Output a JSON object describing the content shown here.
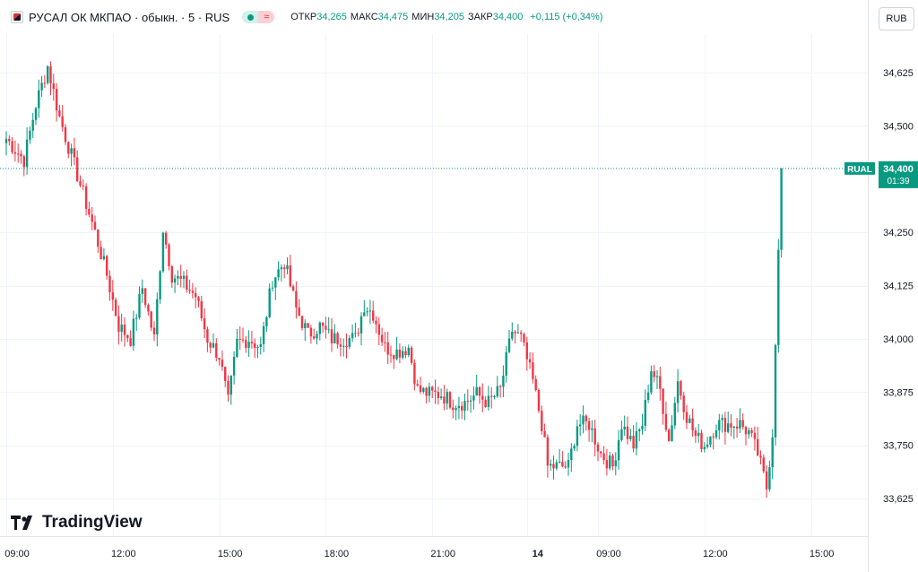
{
  "header": {
    "symbol_title": "РУСАЛ ОК МКПАО · обыкн. · 5 · RUS",
    "ohlc": [
      {
        "key": "ОТКР",
        "value": "34,265"
      },
      {
        "key": "МАКС",
        "value": "34,475"
      },
      {
        "key": "МИН",
        "value": "34,205"
      },
      {
        "key": "ЗАКР",
        "value": "34,400"
      }
    ],
    "change": "+0,115 (+0,34%)",
    "currency_button": "RUB"
  },
  "branding": {
    "logo_text": "TradingView"
  },
  "colors": {
    "up": "#089981",
    "down": "#f23645",
    "grid": "#f0f3fa",
    "axis_text": "#131722"
  },
  "chart_data": {
    "type": "candlestick",
    "symbol_label": "RUAL",
    "last_price": "34,400",
    "countdown": "01:39",
    "y_ticks": [
      "34,625",
      "34,500",
      "34,250",
      "34,125",
      "34,000",
      "33,875",
      "33,750",
      "33,625"
    ],
    "y_tick_values": [
      34.625,
      34.5,
      34.25,
      34.125,
      34.0,
      33.875,
      33.75,
      33.625
    ],
    "ylim": [
      33.625,
      34.625
    ],
    "x_ticks": [
      "09:00",
      "12:00",
      "15:00",
      "18:00",
      "21:00",
      "14",
      "09:00",
      "12:00",
      "15:00"
    ],
    "x_tick_index": [
      0,
      36,
      72,
      108,
      144,
      176,
      200,
      236,
      272
    ],
    "anchors": [
      [
        0,
        34.47
      ],
      [
        6,
        34.42
      ],
      [
        10,
        34.55
      ],
      [
        14,
        34.64
      ],
      [
        18,
        34.52
      ],
      [
        22,
        34.43
      ],
      [
        26,
        34.34
      ],
      [
        30,
        34.25
      ],
      [
        34,
        34.15
      ],
      [
        38,
        34.03
      ],
      [
        42,
        34.0
      ],
      [
        46,
        34.12
      ],
      [
        50,
        34.0
      ],
      [
        53,
        34.26
      ],
      [
        56,
        34.15
      ],
      [
        60,
        34.13
      ],
      [
        64,
        34.1
      ],
      [
        68,
        34.0
      ],
      [
        72,
        33.96
      ],
      [
        75,
        33.85
      ],
      [
        78,
        33.99
      ],
      [
        82,
        34.0
      ],
      [
        86,
        33.98
      ],
      [
        90,
        34.14
      ],
      [
        94,
        34.18
      ],
      [
        98,
        34.07
      ],
      [
        102,
        34.01
      ],
      [
        106,
        34.03
      ],
      [
        110,
        34.0
      ],
      [
        114,
        34.0
      ],
      [
        118,
        34.0
      ],
      [
        121,
        34.08
      ],
      [
        124,
        34.06
      ],
      [
        128,
        33.98
      ],
      [
        132,
        33.97
      ],
      [
        136,
        33.98
      ],
      [
        139,
        33.88
      ],
      [
        143,
        33.87
      ],
      [
        147,
        33.87
      ],
      [
        151,
        33.85
      ],
      [
        155,
        33.85
      ],
      [
        159,
        33.87
      ],
      [
        163,
        33.85
      ],
      [
        167,
        33.88
      ],
      [
        171,
        34.02
      ],
      [
        174,
        34.0
      ],
      [
        178,
        33.9
      ],
      [
        181,
        33.8
      ],
      [
        183,
        33.7
      ],
      [
        186,
        33.7
      ],
      [
        190,
        33.7
      ],
      [
        193,
        33.8
      ],
      [
        197,
        33.8
      ],
      [
        201,
        33.73
      ],
      [
        205,
        33.7
      ],
      [
        208,
        33.8
      ],
      [
        212,
        33.75
      ],
      [
        215,
        33.8
      ],
      [
        218,
        33.93
      ],
      [
        221,
        33.88
      ],
      [
        224,
        33.76
      ],
      [
        227,
        33.9
      ],
      [
        230,
        33.82
      ],
      [
        233,
        33.77
      ],
      [
        236,
        33.75
      ],
      [
        240,
        33.8
      ],
      [
        244,
        33.8
      ],
      [
        248,
        33.8
      ],
      [
        251,
        33.78
      ],
      [
        254,
        33.73
      ],
      [
        257,
        33.65
      ],
      [
        259,
        33.78
      ],
      [
        260,
        34.0
      ],
      [
        262,
        34.4
      ]
    ]
  }
}
